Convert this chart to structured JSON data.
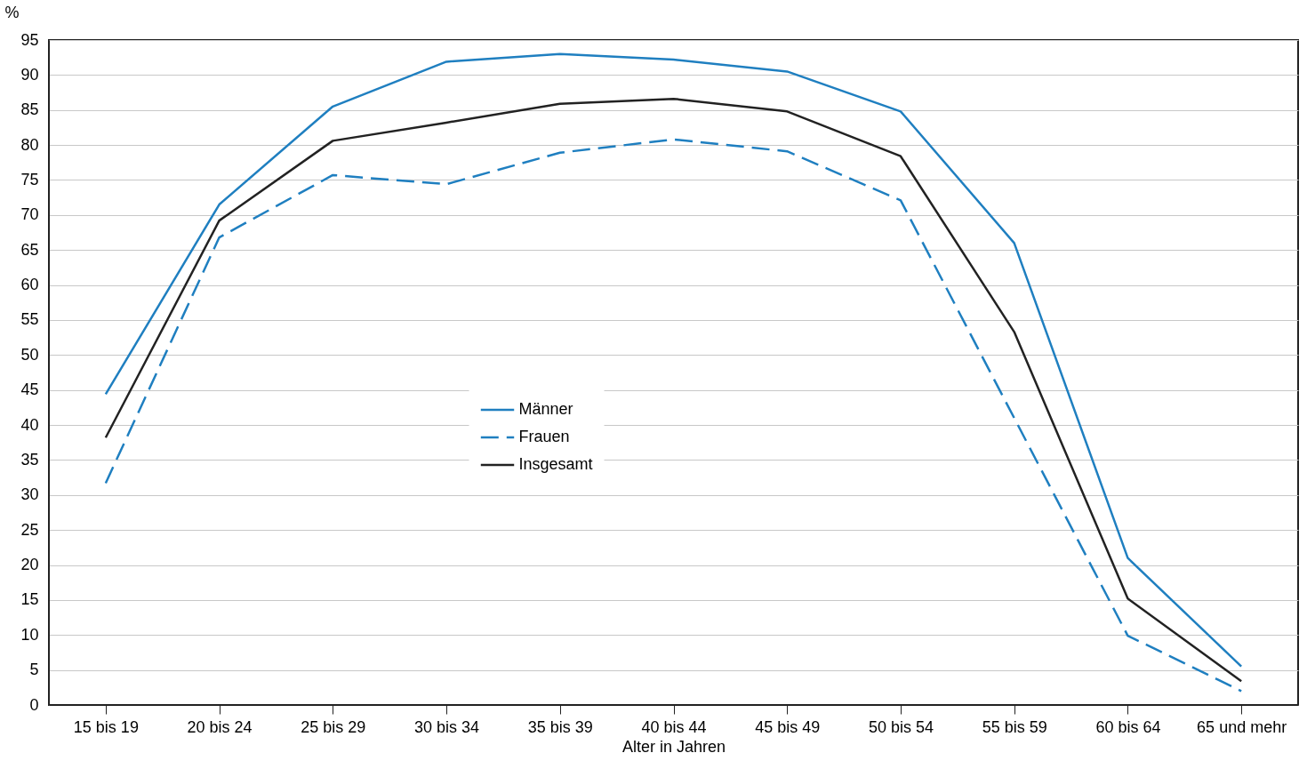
{
  "chart_data": {
    "type": "line",
    "ylabel": "%",
    "xlabel": "Alter in Jahren",
    "categories": [
      "15 bis 19",
      "20 bis 24",
      "25 bis 29",
      "30 bis 34",
      "35 bis 39",
      "40 bis 44",
      "45 bis 49",
      "50 bis 54",
      "55 bis 59",
      "60 bis 64",
      "65 und mehr"
    ],
    "series": [
      {
        "name": "Männer",
        "color": "#1f7fc0",
        "line_style": "solid",
        "values": [
          44.4,
          71.5,
          85.5,
          91.9,
          93.0,
          92.2,
          90.5,
          84.8,
          66.0,
          21.0,
          5.5
        ]
      },
      {
        "name": "Frauen",
        "color": "#1f7fc0",
        "line_style": "dashed",
        "values": [
          31.7,
          66.8,
          75.7,
          74.4,
          78.9,
          80.8,
          79.1,
          72.1,
          41.0,
          9.9,
          2.0
        ]
      },
      {
        "name": "Insgesamt",
        "color": "#222222",
        "line_style": "solid",
        "values": [
          38.2,
          69.2,
          80.6,
          83.2,
          85.9,
          86.6,
          84.8,
          78.4,
          53.3,
          15.2,
          3.4
        ]
      }
    ],
    "ylim": [
      0,
      95
    ],
    "yticks": [
      0,
      5,
      10,
      15,
      20,
      25,
      30,
      35,
      40,
      45,
      50,
      55,
      60,
      65,
      70,
      75,
      80,
      85,
      90,
      95
    ],
    "grid": "y",
    "legend": "center",
    "marker": "none"
  }
}
